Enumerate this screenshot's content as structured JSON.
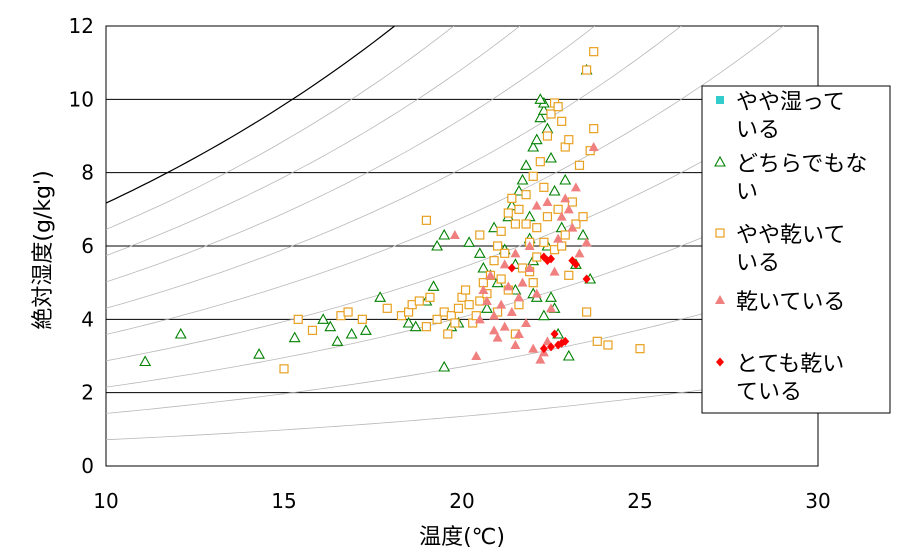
{
  "chart_data": {
    "type": "scatter",
    "xlabel": "温度(℃)",
    "ylabel": "絶対湿度(g/kg')",
    "xlim": [
      10,
      30
    ],
    "ylim": [
      0,
      12
    ],
    "x_ticks": [
      "10",
      "15",
      "20",
      "25",
      "30"
    ],
    "y_ticks": [
      "0",
      "2",
      "4",
      "6",
      "8",
      "10",
      "12"
    ],
    "grid": "horizontal major gridlines",
    "legend_position": "right",
    "background_curves": "relative-humidity curves (psychrometric), saturation curve drawn in black",
    "series": [
      {
        "name": "やや湿っている",
        "legend_lines": [
          "やや湿って",
          "いる"
        ],
        "marker": "filled-square",
        "color": "#33CCCC",
        "points": []
      },
      {
        "name": "どちらでもない",
        "legend_lines": [
          "どちらでもな",
          "い"
        ],
        "marker": "open-triangle",
        "color": "#008000",
        "points": [
          [
            11.1,
            2.85
          ],
          [
            12.1,
            3.6
          ],
          [
            14.3,
            3.05
          ],
          [
            15.3,
            3.5
          ],
          [
            16.1,
            4.0
          ],
          [
            16.3,
            3.8
          ],
          [
            16.5,
            3.4
          ],
          [
            16.9,
            3.6
          ],
          [
            17.3,
            3.7
          ],
          [
            17.7,
            4.6
          ],
          [
            18.5,
            3.9
          ],
          [
            18.7,
            3.8
          ],
          [
            19.0,
            4.5
          ],
          [
            19.2,
            4.9
          ],
          [
            19.3,
            6.0
          ],
          [
            19.5,
            6.3
          ],
          [
            19.5,
            2.7
          ],
          [
            19.7,
            3.8
          ],
          [
            19.9,
            3.9
          ],
          [
            20.2,
            6.1
          ],
          [
            20.5,
            5.8
          ],
          [
            20.6,
            5.4
          ],
          [
            20.7,
            4.3
          ],
          [
            20.9,
            6.5
          ],
          [
            21.0,
            5.0
          ],
          [
            21.2,
            5.9
          ],
          [
            21.3,
            6.8
          ],
          [
            21.4,
            7.1
          ],
          [
            21.5,
            5.5
          ],
          [
            21.6,
            7.5
          ],
          [
            21.7,
            7.8
          ],
          [
            21.8,
            8.2
          ],
          [
            21.9,
            6.2
          ],
          [
            22.0,
            8.7
          ],
          [
            22.1,
            8.9
          ],
          [
            22.2,
            9.5
          ],
          [
            22.3,
            9.7
          ],
          [
            22.4,
            9.2
          ],
          [
            22.5,
            8.4
          ],
          [
            22.0,
            4.7
          ],
          [
            22.1,
            4.6
          ],
          [
            22.3,
            4.1
          ],
          [
            22.5,
            4.6
          ],
          [
            22.6,
            4.3
          ],
          [
            22.7,
            3.6
          ],
          [
            22.8,
            6.5
          ],
          [
            22.9,
            7.8
          ],
          [
            23.0,
            3.0
          ],
          [
            23.2,
            5.5
          ],
          [
            23.4,
            6.3
          ],
          [
            23.5,
            10.8
          ],
          [
            23.6,
            5.1
          ],
          [
            22.3,
            9.9
          ],
          [
            21.9,
            6.8
          ],
          [
            22.2,
            10.0
          ],
          [
            22.4,
            6.0
          ],
          [
            22.6,
            7.5
          ],
          [
            21.5,
            4.8
          ],
          [
            20.8,
            5.2
          ],
          [
            22.0,
            5.6
          ]
        ]
      },
      {
        "name": "やや乾いている",
        "legend_lines": [
          "やや乾いて",
          "いる"
        ],
        "marker": "open-square",
        "color": "#E8A020",
        "points": [
          [
            15.0,
            2.65
          ],
          [
            15.4,
            4.0
          ],
          [
            15.8,
            3.7
          ],
          [
            16.6,
            4.1
          ],
          [
            16.8,
            4.2
          ],
          [
            17.2,
            4.0
          ],
          [
            17.9,
            4.3
          ],
          [
            18.3,
            4.1
          ],
          [
            18.5,
            4.2
          ],
          [
            18.6,
            4.4
          ],
          [
            18.8,
            4.5
          ],
          [
            19.0,
            6.7
          ],
          [
            19.0,
            3.8
          ],
          [
            19.1,
            4.6
          ],
          [
            19.3,
            4.0
          ],
          [
            19.5,
            4.2
          ],
          [
            19.6,
            3.6
          ],
          [
            19.7,
            4.1
          ],
          [
            19.8,
            3.9
          ],
          [
            19.9,
            4.3
          ],
          [
            20.0,
            4.6
          ],
          [
            20.1,
            4.8
          ],
          [
            20.2,
            4.4
          ],
          [
            20.3,
            3.9
          ],
          [
            20.4,
            4.1
          ],
          [
            20.5,
            4.5
          ],
          [
            20.5,
            6.3
          ],
          [
            20.6,
            5.0
          ],
          [
            20.7,
            4.7
          ],
          [
            20.8,
            5.2
          ],
          [
            20.9,
            5.6
          ],
          [
            21.0,
            6.0
          ],
          [
            21.0,
            4.2
          ],
          [
            21.1,
            6.4
          ],
          [
            21.2,
            5.8
          ],
          [
            21.3,
            6.9
          ],
          [
            21.4,
            7.3
          ],
          [
            21.5,
            6.6
          ],
          [
            21.5,
            3.6
          ],
          [
            21.6,
            7.0
          ],
          [
            21.7,
            5.4
          ],
          [
            21.8,
            7.4
          ],
          [
            21.9,
            6.1
          ],
          [
            22.0,
            7.9
          ],
          [
            22.0,
            5.0
          ],
          [
            22.1,
            6.5
          ],
          [
            22.2,
            8.3
          ],
          [
            22.3,
            7.6
          ],
          [
            22.4,
            9.0
          ],
          [
            22.5,
            9.6
          ],
          [
            22.6,
            9.9
          ],
          [
            22.7,
            9.8
          ],
          [
            22.8,
            9.4
          ],
          [
            22.9,
            8.7
          ],
          [
            23.0,
            8.9
          ],
          [
            23.1,
            7.2
          ],
          [
            23.2,
            6.6
          ],
          [
            23.3,
            8.2
          ],
          [
            23.4,
            6.8
          ],
          [
            23.5,
            4.2
          ],
          [
            23.6,
            8.6
          ],
          [
            23.7,
            9.2
          ],
          [
            23.8,
            3.4
          ],
          [
            24.1,
            3.3
          ],
          [
            25.0,
            3.2
          ],
          [
            23.7,
            11.3
          ],
          [
            23.5,
            10.8
          ],
          [
            22.9,
            6.3
          ],
          [
            22.6,
            5.9
          ],
          [
            22.3,
            6.1
          ],
          [
            22.1,
            5.7
          ],
          [
            21.9,
            5.3
          ],
          [
            21.6,
            4.4
          ],
          [
            21.3,
            4.8
          ],
          [
            21.1,
            5.1
          ],
          [
            22.8,
            6.0
          ],
          [
            23.0,
            5.2
          ],
          [
            22.4,
            6.8
          ],
          [
            22.7,
            7.0
          ],
          [
            21.8,
            6.6
          ]
        ]
      },
      {
        "name": "乾いている",
        "legend_lines": [
          "乾いている"
        ],
        "marker": "filled-triangle",
        "color": "#F08080",
        "points": [
          [
            19.8,
            6.3
          ],
          [
            20.4,
            3.0
          ],
          [
            20.5,
            4.0
          ],
          [
            20.6,
            4.8
          ],
          [
            20.7,
            4.5
          ],
          [
            20.8,
            5.2
          ],
          [
            20.9,
            4.1
          ],
          [
            21.0,
            3.5
          ],
          [
            21.1,
            4.4
          ],
          [
            21.2,
            3.8
          ],
          [
            21.3,
            4.9
          ],
          [
            21.4,
            4.2
          ],
          [
            21.5,
            3.3
          ],
          [
            21.6,
            4.6
          ],
          [
            21.7,
            5.0
          ],
          [
            21.8,
            3.9
          ],
          [
            21.9,
            5.4
          ],
          [
            22.0,
            3.2
          ],
          [
            22.1,
            4.7
          ],
          [
            22.2,
            2.9
          ],
          [
            22.3,
            3.1
          ],
          [
            22.4,
            3.4
          ],
          [
            22.5,
            4.3
          ],
          [
            22.6,
            5.3
          ],
          [
            22.7,
            6.2
          ],
          [
            22.8,
            6.8
          ],
          [
            22.9,
            7.3
          ],
          [
            23.0,
            7.0
          ],
          [
            23.1,
            6.5
          ],
          [
            23.2,
            7.6
          ],
          [
            23.3,
            5.8
          ],
          [
            23.5,
            6.1
          ],
          [
            23.7,
            8.7
          ],
          [
            22.4,
            7.2
          ],
          [
            22.1,
            7.1
          ],
          [
            21.9,
            6.0
          ],
          [
            21.5,
            5.8
          ],
          [
            21.2,
            5.5
          ],
          [
            20.9,
            3.7
          ],
          [
            21.6,
            3.6
          ]
        ]
      },
      {
        "name": "とても乾いている",
        "legend_lines": [
          "とても乾い",
          "ている"
        ],
        "marker": "filled-diamond",
        "color": "#FF0000",
        "points": [
          [
            21.4,
            5.4
          ],
          [
            22.3,
            5.7
          ],
          [
            22.4,
            5.6
          ],
          [
            22.5,
            5.65
          ],
          [
            23.1,
            5.6
          ],
          [
            23.2,
            5.5
          ],
          [
            23.5,
            5.1
          ],
          [
            22.3,
            3.2
          ],
          [
            22.5,
            3.25
          ],
          [
            22.7,
            3.3
          ],
          [
            22.8,
            3.35
          ],
          [
            22.9,
            3.4
          ],
          [
            22.6,
            3.6
          ]
        ]
      }
    ]
  }
}
